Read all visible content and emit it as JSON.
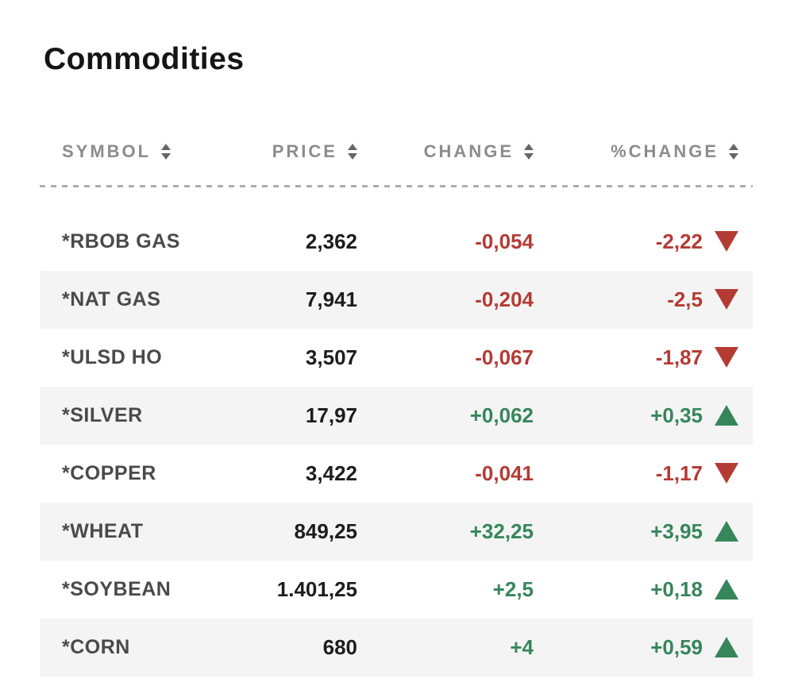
{
  "page": {
    "title": "Commodities"
  },
  "table": {
    "columns": [
      {
        "label": "SYMBOL",
        "sort_icon": "sort-arrows-icon"
      },
      {
        "label": "PRICE",
        "sort_icon": "sort-arrows-icon"
      },
      {
        "label": "CHANGE",
        "sort_icon": "sort-arrows-icon"
      },
      {
        "label": "%CHANGE",
        "sort_icon": "sort-arrows-icon"
      }
    ],
    "rows": [
      {
        "symbol": "*RBOB GAS",
        "price": "2,362",
        "change": "-0,054",
        "pct_change": "-2,22",
        "direction": "down"
      },
      {
        "symbol": "*NAT GAS",
        "price": "7,941",
        "change": "-0,204",
        "pct_change": "-2,5",
        "direction": "down"
      },
      {
        "symbol": "*ULSD HO",
        "price": "3,507",
        "change": "-0,067",
        "pct_change": "-1,87",
        "direction": "down"
      },
      {
        "symbol": "*SILVER",
        "price": "17,97",
        "change": "+0,062",
        "pct_change": "+0,35",
        "direction": "up"
      },
      {
        "symbol": "*COPPER",
        "price": "3,422",
        "change": "-0,041",
        "pct_change": "-1,17",
        "direction": "down"
      },
      {
        "symbol": "*WHEAT",
        "price": "849,25",
        "change": "+32,25",
        "pct_change": "+3,95",
        "direction": "up"
      },
      {
        "symbol": "*SOYBEAN",
        "price": "1.401,25",
        "change": "+2,5",
        "pct_change": "+0,18",
        "direction": "up"
      },
      {
        "symbol": "*CORN",
        "price": "680",
        "change": "+4",
        "pct_change": "+0,59",
        "direction": "up"
      }
    ],
    "colors": {
      "negative": "#b43b34",
      "positive": "#36865b",
      "header_text": "#8c8c8c",
      "symbol_text": "#4a4a4a",
      "price_text": "#1d1d1d",
      "row_alt_bg": "#f4f4f4",
      "divider": "#adadad",
      "sort_icon": "#666666"
    }
  }
}
